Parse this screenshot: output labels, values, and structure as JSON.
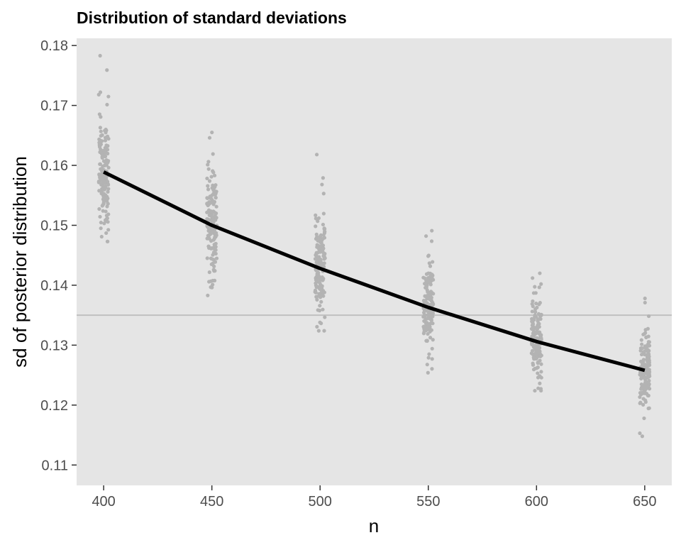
{
  "chart_data": {
    "type": "scatter",
    "title": "Distribution of standard deviations",
    "xlabel": "n",
    "ylabel": "sd of posterior distribution",
    "xlim": [
      387.5,
      662.5
    ],
    "ylim": [
      0.1066,
      0.1812
    ],
    "x_ticks": [
      400,
      450,
      500,
      550,
      600,
      650
    ],
    "x_tick_labels": [
      "400",
      "450",
      "500",
      "550",
      "600",
      "650"
    ],
    "y_ticks": [
      0.11,
      0.12,
      0.13,
      0.14,
      0.15,
      0.16,
      0.17,
      0.18
    ],
    "y_tick_labels": [
      "0.11",
      "0.12",
      "0.13",
      "0.14",
      "0.15",
      "0.16",
      "0.17",
      "0.18"
    ],
    "grid": false,
    "legend": "none",
    "reference_line": {
      "y": 0.135,
      "color": "#c0c0c0"
    },
    "groups": [
      {
        "x": 400,
        "mean": 0.1588,
        "sd": 0.0048,
        "min": 0.1473,
        "max": 0.1783,
        "extra": [
          0.1783,
          0.1759,
          0.1722,
          0.1718,
          0.1487,
          0.1481,
          0.1473,
          0.1495
        ]
      },
      {
        "x": 450,
        "mean": 0.15,
        "sd": 0.0045,
        "min": 0.1383,
        "max": 0.1655,
        "extra": [
          0.1655,
          0.1646,
          0.1619,
          0.1383,
          0.1401
        ]
      },
      {
        "x": 500,
        "mean": 0.1428,
        "sd": 0.0038,
        "min": 0.1324,
        "max": 0.1618,
        "extra": [
          0.1618,
          0.1579,
          0.1568,
          0.1553,
          0.1324,
          0.1338
        ]
      },
      {
        "x": 550,
        "mean": 0.1363,
        "sd": 0.0036,
        "min": 0.1254,
        "max": 0.1491,
        "extra": [
          0.1491,
          0.1482,
          0.1254,
          0.1279,
          0.1285
        ]
      },
      {
        "x": 600,
        "mean": 0.1306,
        "sd": 0.0034,
        "min": 0.1224,
        "max": 0.142,
        "extra": [
          0.142,
          0.1412,
          0.1402,
          0.1224,
          0.1228
        ]
      },
      {
        "x": 650,
        "mean": 0.1257,
        "sd": 0.0033,
        "min": 0.1148,
        "max": 0.1378,
        "extra": [
          0.1378,
          0.1371,
          0.1148,
          0.1153,
          0.1178
        ]
      }
    ],
    "points_per_group": 150,
    "mean_line": {
      "x": [
        400,
        450,
        500,
        550,
        600,
        650
      ],
      "y": [
        0.1589,
        0.15,
        0.1428,
        0.1363,
        0.1306,
        0.1258
      ],
      "color": "#000000"
    },
    "point_color": "#b3b3b3",
    "panel_color": "#e5e5e5"
  }
}
